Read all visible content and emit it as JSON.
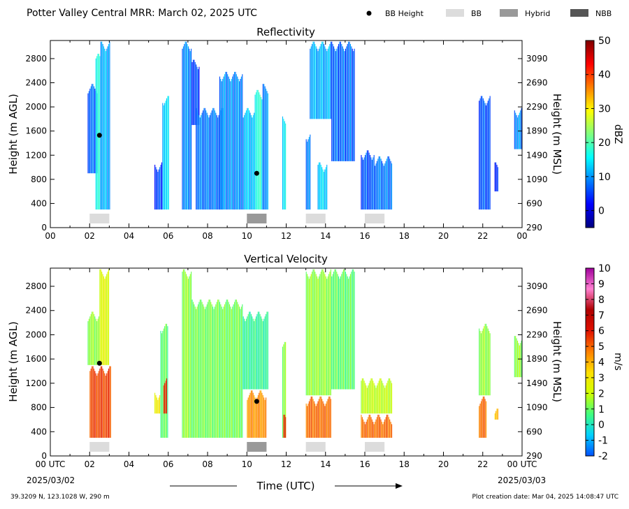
{
  "header": {
    "title": "Potter Valley Central MRR:  March 02, 2025 UTC",
    "legend": [
      {
        "label": "BB Height",
        "kind": "dot",
        "color": "#000000"
      },
      {
        "label": "BB",
        "kind": "box",
        "color": "#dcdcdc"
      },
      {
        "label": "Hybrid",
        "kind": "box",
        "color": "#999999"
      },
      {
        "label": "NBB",
        "kind": "box",
        "color": "#555555"
      }
    ]
  },
  "footer": {
    "location": "39.3209 N, 123.1028 W, 290 m",
    "creation": "Plot creation date: Mar 04, 2025 14:08:47 UTC",
    "xlabel": "Time (UTC)",
    "start_tick": "00 UTC",
    "end_tick": "00 UTC",
    "start_date": "2025/03/02",
    "end_date": "2025/03/03"
  },
  "chart_data": [
    {
      "type": "heatmap",
      "title": "Reflectivity",
      "ylabel": "Height (m AGL)",
      "y2label": "Height (m MSL)",
      "xlim": [
        0,
        24
      ],
      "ylim": [
        0,
        3100
      ],
      "xticks": [
        "00",
        "02",
        "04",
        "06",
        "08",
        "10",
        "12",
        "14",
        "16",
        "18",
        "20",
        "22",
        "00"
      ],
      "yticks": [
        0,
        400,
        800,
        1200,
        1600,
        2000,
        2400,
        2800
      ],
      "y2ticks": [
        290,
        690,
        1090,
        1490,
        1890,
        2290,
        2690,
        3090
      ],
      "colorbar": {
        "label": "dBZ",
        "min": -5,
        "max": 50,
        "ticks": [
          0,
          10,
          20,
          30,
          40,
          50
        ],
        "colors": [
          "#00007f",
          "#0000ff",
          "#007fff",
          "#00ffff",
          "#7fff7f",
          "#ffff00",
          "#ff7f00",
          "#ff0000",
          "#7f0000"
        ]
      },
      "bb_heights": [
        {
          "time": 2.5,
          "height": 1530
        },
        {
          "time": 10.5,
          "height": 900
        }
      ],
      "bb_periods": [
        {
          "start": 2.0,
          "end": 3.0,
          "type": "BB"
        },
        {
          "start": 10.0,
          "end": 11.0,
          "type": "Hybrid"
        },
        {
          "start": 13.0,
          "end": 14.0,
          "type": "BB"
        },
        {
          "start": 16.0,
          "end": 17.0,
          "type": "BB"
        }
      ],
      "echoes": [
        {
          "start": 1.9,
          "end": 2.4,
          "bottom": 900,
          "top": 2400,
          "dbz": 8
        },
        {
          "start": 2.3,
          "end": 2.55,
          "bottom": 300,
          "top": 2900,
          "dbz": 18
        },
        {
          "start": 2.55,
          "end": 3.05,
          "bottom": 300,
          "top": 3100,
          "dbz": 12
        },
        {
          "start": 5.3,
          "end": 5.7,
          "bottom": 300,
          "top": 1100,
          "dbz": 6
        },
        {
          "start": 5.7,
          "end": 6.05,
          "bottom": 300,
          "top": 2200,
          "dbz": 14
        },
        {
          "start": 6.7,
          "end": 7.2,
          "bottom": 300,
          "top": 3100,
          "dbz": 10
        },
        {
          "start": 7.2,
          "end": 7.6,
          "bottom": 1700,
          "top": 2800,
          "dbz": 6
        },
        {
          "start": 7.4,
          "end": 8.8,
          "bottom": 300,
          "top": 2000,
          "dbz": 9
        },
        {
          "start": 8.6,
          "end": 9.8,
          "bottom": 300,
          "top": 2600,
          "dbz": 10
        },
        {
          "start": 9.8,
          "end": 10.4,
          "bottom": 300,
          "top": 2000,
          "dbz": 13
        },
        {
          "start": 10.4,
          "end": 10.8,
          "bottom": 300,
          "top": 2300,
          "dbz": 18
        },
        {
          "start": 10.8,
          "end": 11.1,
          "bottom": 300,
          "top": 2400,
          "dbz": 10
        },
        {
          "start": 11.8,
          "end": 12.0,
          "bottom": 300,
          "top": 1900,
          "dbz": 16
        },
        {
          "start": 13.0,
          "end": 13.25,
          "bottom": 300,
          "top": 1600,
          "dbz": 10
        },
        {
          "start": 13.2,
          "end": 14.3,
          "bottom": 1800,
          "top": 3100,
          "dbz": 12
        },
        {
          "start": 13.6,
          "end": 14.1,
          "bottom": 300,
          "top": 1100,
          "dbz": 14
        },
        {
          "start": 14.3,
          "end": 15.5,
          "bottom": 1100,
          "top": 3100,
          "dbz": 8
        },
        {
          "start": 15.8,
          "end": 16.5,
          "bottom": 300,
          "top": 1300,
          "dbz": 7
        },
        {
          "start": 16.5,
          "end": 17.4,
          "bottom": 300,
          "top": 1200,
          "dbz": 9
        },
        {
          "start": 21.8,
          "end": 22.4,
          "bottom": 300,
          "top": 2200,
          "dbz": 7
        },
        {
          "start": 22.6,
          "end": 22.8,
          "bottom": 600,
          "top": 1100,
          "dbz": 5
        },
        {
          "start": 23.6,
          "end": 24.0,
          "bottom": 1300,
          "top": 2000,
          "dbz": 10
        }
      ]
    },
    {
      "type": "heatmap",
      "title": "Vertical Velocity",
      "ylabel": "Height (m AGL)",
      "y2label": "Height (m MSL)",
      "xlim": [
        0,
        24
      ],
      "ylim": [
        0,
        3100
      ],
      "xticks": [
        "00",
        "02",
        "04",
        "06",
        "08",
        "10",
        "12",
        "14",
        "16",
        "18",
        "20",
        "22",
        "00"
      ],
      "yticks": [
        0,
        400,
        800,
        1200,
        1600,
        2000,
        2400,
        2800
      ],
      "y2ticks": [
        290,
        690,
        1090,
        1490,
        1890,
        2290,
        2690,
        3090
      ],
      "colorbar": {
        "label": "m/s",
        "min": -2,
        "max": 10,
        "ticks": [
          -2,
          -1,
          0,
          1,
          2,
          3,
          4,
          5,
          6,
          7,
          8,
          9,
          10
        ],
        "colors": [
          "#0050ff",
          "#00d0ff",
          "#40ff80",
          "#d0ff00",
          "#ffe000",
          "#ff8000",
          "#e01000",
          "#b00000",
          "#ff80d0",
          "#a0009c"
        ]
      },
      "bb_heights": [
        {
          "time": 2.5,
          "height": 1530
        },
        {
          "time": 10.5,
          "height": 900
        }
      ],
      "bb_periods": [
        {
          "start": 2.0,
          "end": 3.0,
          "type": "BB"
        },
        {
          "start": 10.0,
          "end": 11.0,
          "type": "Hybrid"
        },
        {
          "start": 13.0,
          "end": 14.0,
          "type": "BB"
        },
        {
          "start": 16.0,
          "end": 17.0,
          "type": "BB"
        }
      ],
      "echoes": [
        {
          "start": 1.9,
          "end": 2.5,
          "bottom": 1500,
          "top": 2400,
          "vel": 1.5
        },
        {
          "start": 2.0,
          "end": 3.1,
          "bottom": 300,
          "top": 1500,
          "vel": 5.5
        },
        {
          "start": 2.5,
          "end": 3.0,
          "bottom": 1500,
          "top": 3100,
          "vel": 2.5
        },
        {
          "start": 5.3,
          "end": 5.6,
          "bottom": 700,
          "top": 1100,
          "vel": 3.0
        },
        {
          "start": 5.6,
          "end": 6.0,
          "bottom": 300,
          "top": 2200,
          "vel": 1.0
        },
        {
          "start": 5.75,
          "end": 5.95,
          "bottom": 700,
          "top": 1300,
          "vel": 6.0
        },
        {
          "start": 6.7,
          "end": 7.2,
          "bottom": 300,
          "top": 3100,
          "vel": 1.5
        },
        {
          "start": 7.2,
          "end": 9.8,
          "bottom": 300,
          "top": 2600,
          "vel": 1.2
        },
        {
          "start": 9.8,
          "end": 11.1,
          "bottom": 1100,
          "top": 2400,
          "vel": 0.5
        },
        {
          "start": 10.0,
          "end": 11.0,
          "bottom": 300,
          "top": 1100,
          "vel": 4.5
        },
        {
          "start": 11.8,
          "end": 12.0,
          "bottom": 300,
          "top": 1900,
          "vel": 1.5
        },
        {
          "start": 11.85,
          "end": 12.0,
          "bottom": 300,
          "top": 700,
          "vel": 6.0
        },
        {
          "start": 13.0,
          "end": 14.3,
          "bottom": 1000,
          "top": 3100,
          "vel": 1.5
        },
        {
          "start": 13.0,
          "end": 14.3,
          "bottom": 300,
          "top": 1000,
          "vel": 5.0
        },
        {
          "start": 14.3,
          "end": 15.5,
          "bottom": 1100,
          "top": 3100,
          "vel": 1.0
        },
        {
          "start": 15.8,
          "end": 17.4,
          "bottom": 700,
          "top": 1300,
          "vel": 2.0
        },
        {
          "start": 15.8,
          "end": 17.4,
          "bottom": 300,
          "top": 700,
          "vel": 5.0
        },
        {
          "start": 21.8,
          "end": 22.4,
          "bottom": 1000,
          "top": 2200,
          "vel": 1.5
        },
        {
          "start": 21.8,
          "end": 22.2,
          "bottom": 300,
          "top": 1000,
          "vel": 5.0
        },
        {
          "start": 22.6,
          "end": 22.8,
          "bottom": 600,
          "top": 800,
          "vel": 4.0
        },
        {
          "start": 23.6,
          "end": 24.0,
          "bottom": 1300,
          "top": 2000,
          "vel": 1.5
        }
      ]
    }
  ]
}
